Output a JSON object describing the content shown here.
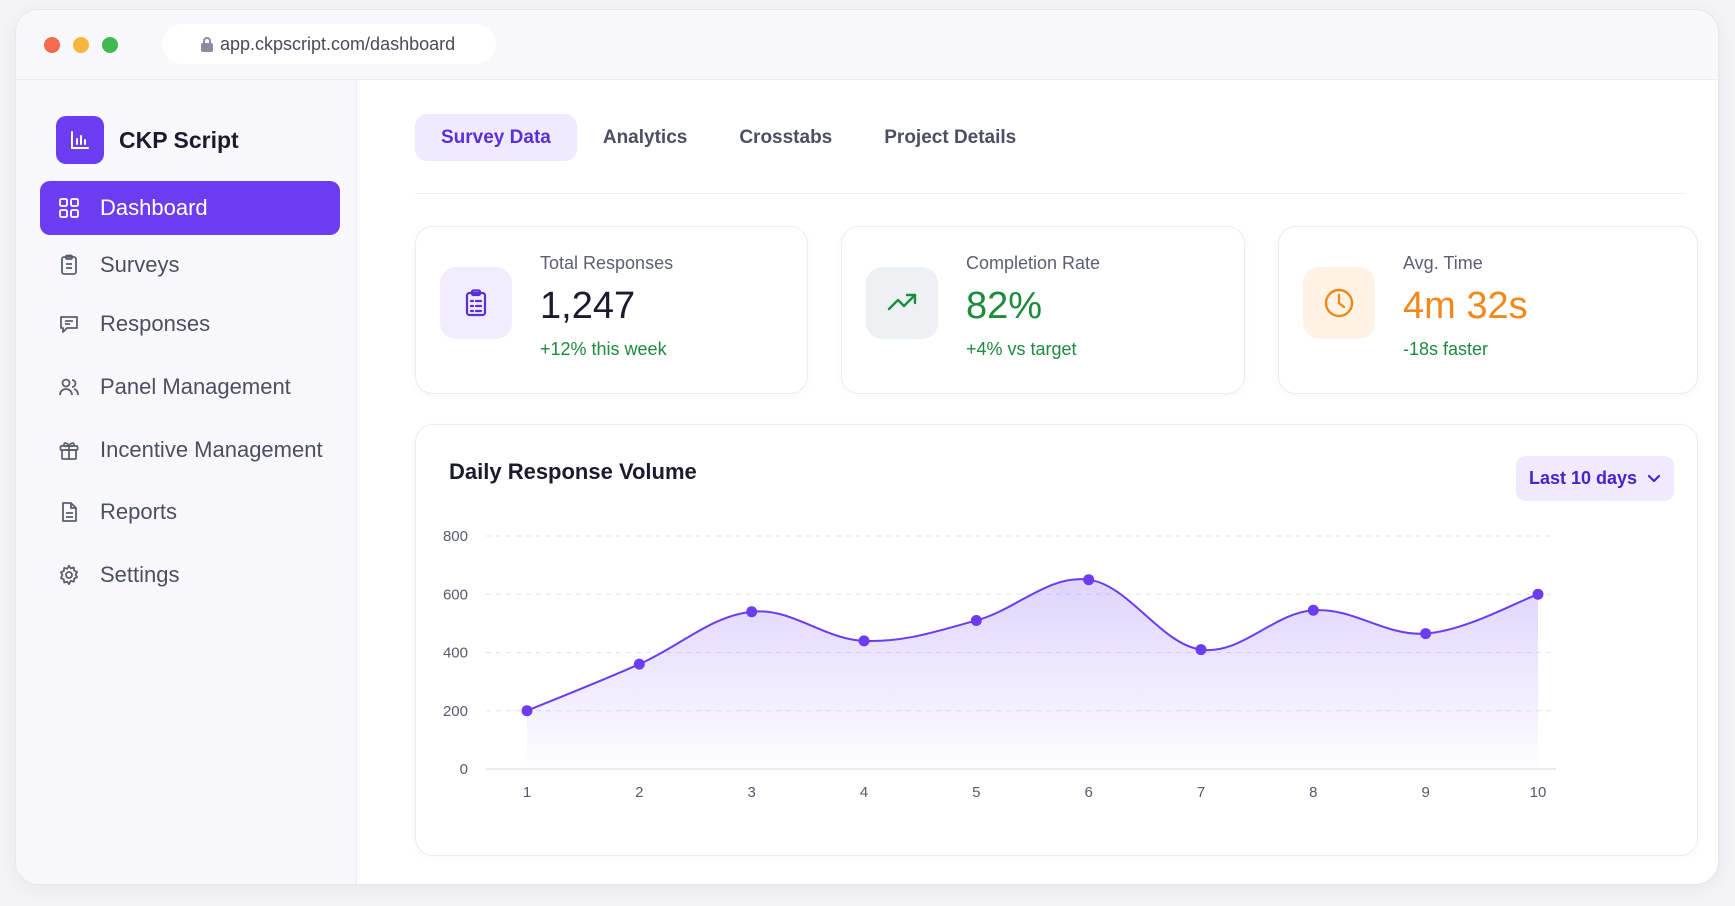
{
  "browser": {
    "url": "app.ckpscript.com/dashboard"
  },
  "sidebar": {
    "brand": "CKP Script",
    "items": [
      {
        "label": "Dashboard",
        "icon": "grid-icon",
        "active": true
      },
      {
        "label": "Surveys",
        "icon": "clipboard-icon"
      },
      {
        "label": "Responses",
        "icon": "message-icon"
      },
      {
        "label": "Panel Management",
        "icon": "users-icon"
      },
      {
        "label": "Incentive Management",
        "icon": "gift-icon"
      },
      {
        "label": "Reports",
        "icon": "document-icon"
      },
      {
        "label": "Settings",
        "icon": "gear-icon"
      }
    ]
  },
  "tabs": [
    {
      "label": "Survey Data",
      "active": true
    },
    {
      "label": "Analytics"
    },
    {
      "label": "Crosstabs"
    },
    {
      "label": "Project Details"
    }
  ],
  "stats": [
    {
      "label": "Total Responses",
      "value": "1,247",
      "delta": "+12% this week",
      "icon": "clipboard-icon",
      "color": "#1b1b2f",
      "icon_bg": "#f1edfd",
      "icon_color": "#5b2fd6"
    },
    {
      "label": "Completion Rate",
      "value": "82%",
      "delta": "+4% vs target",
      "icon": "trending-up-icon",
      "color": "#1e8a3c",
      "icon_bg": "#eef1f3",
      "icon_color": "#1e8a3c"
    },
    {
      "label": "Avg. Time",
      "value": "4m 32s",
      "delta": "-18s faster",
      "icon": "clock-icon",
      "color": "#f0881a",
      "icon_bg": "#fff3e6",
      "icon_color": "#f0881a"
    }
  ],
  "chart": {
    "title": "Daily Response Volume",
    "range_label": "Last 10 days"
  },
  "chart_data": {
    "type": "area",
    "x": [
      1,
      2,
      3,
      4,
      5,
      6,
      7,
      8,
      9,
      10
    ],
    "series": [
      {
        "values": [
          200,
          360,
          540,
          440,
          510,
          650,
          410,
          545,
          465,
          600
        ]
      }
    ],
    "ylim": [
      0,
      800
    ],
    "yticks": [
      0,
      200,
      400,
      600,
      800
    ],
    "xlabel": "",
    "ylabel": "",
    "grid": true,
    "colors": {
      "line": "#6c3df0",
      "fill": "#6c3df0"
    }
  }
}
